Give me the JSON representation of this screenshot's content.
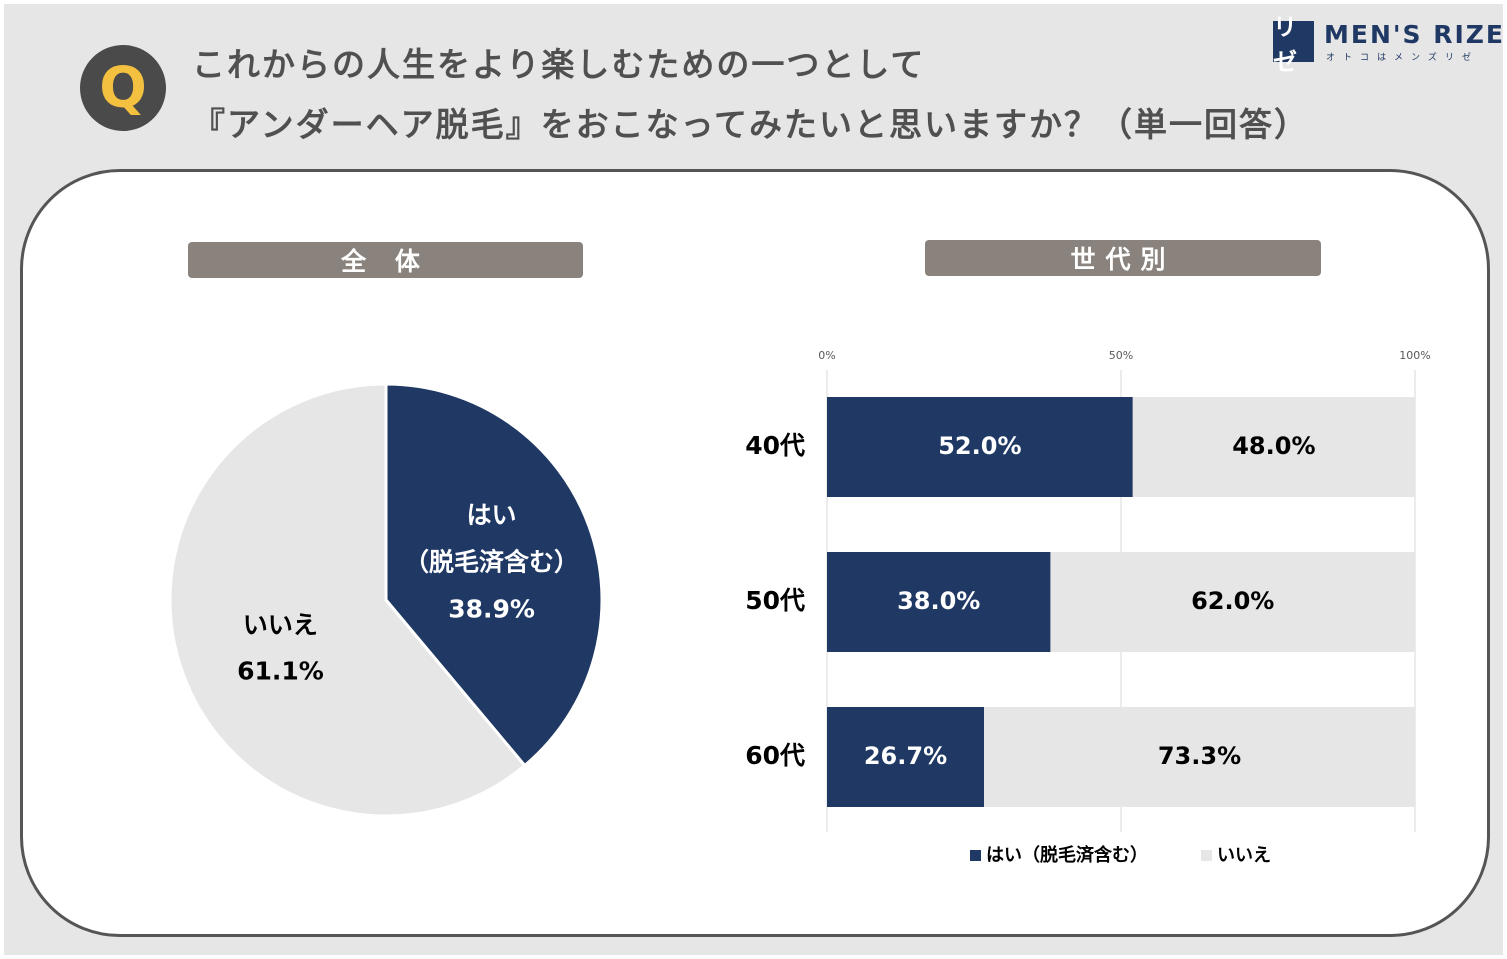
{
  "question": {
    "mark": "Q",
    "line1": "これからの人生をより楽しむための一つとして",
    "line2": "『アンダーヘア脱毛』をおこなってみたいと思いますか？（単一回答）"
  },
  "logo": {
    "mark": "リゼ",
    "text": "MEN'S RIZE",
    "sub": "オトコはメンズリゼ"
  },
  "sections": {
    "overall": "全 体",
    "by_generation": "世代別"
  },
  "colors": {
    "yes": "#1f3864",
    "no": "#e6e6e6"
  },
  "chart_data": [
    {
      "type": "pie",
      "title": "全 体",
      "slices": [
        {
          "label_line1": "はい",
          "label_line2": "（脱毛済含む）",
          "value": 38.9,
          "display": "38.9%"
        },
        {
          "label_line1": "いいえ",
          "label_line2": "",
          "value": 61.1,
          "display": "61.1%"
        }
      ]
    },
    {
      "type": "bar",
      "orientation": "horizontal",
      "stacked": true,
      "title": "世代別",
      "categories": [
        "40代",
        "50代",
        "60代"
      ],
      "series": [
        {
          "name": "はい（脱毛済含む）",
          "values": [
            52.0,
            38.0,
            26.7
          ],
          "labels": [
            "52.0%",
            "38.0%",
            "26.7%"
          ]
        },
        {
          "name": "いいえ",
          "values": [
            48.0,
            62.0,
            73.3
          ],
          "labels": [
            "48.0%",
            "62.0%",
            "73.3%"
          ]
        }
      ],
      "xlim": [
        0,
        100
      ],
      "ticks": [
        {
          "value": 0,
          "label": "0%"
        },
        {
          "value": 50,
          "label": "50%"
        },
        {
          "value": 100,
          "label": "100%"
        }
      ],
      "grid": true,
      "legend": "bottom"
    }
  ]
}
